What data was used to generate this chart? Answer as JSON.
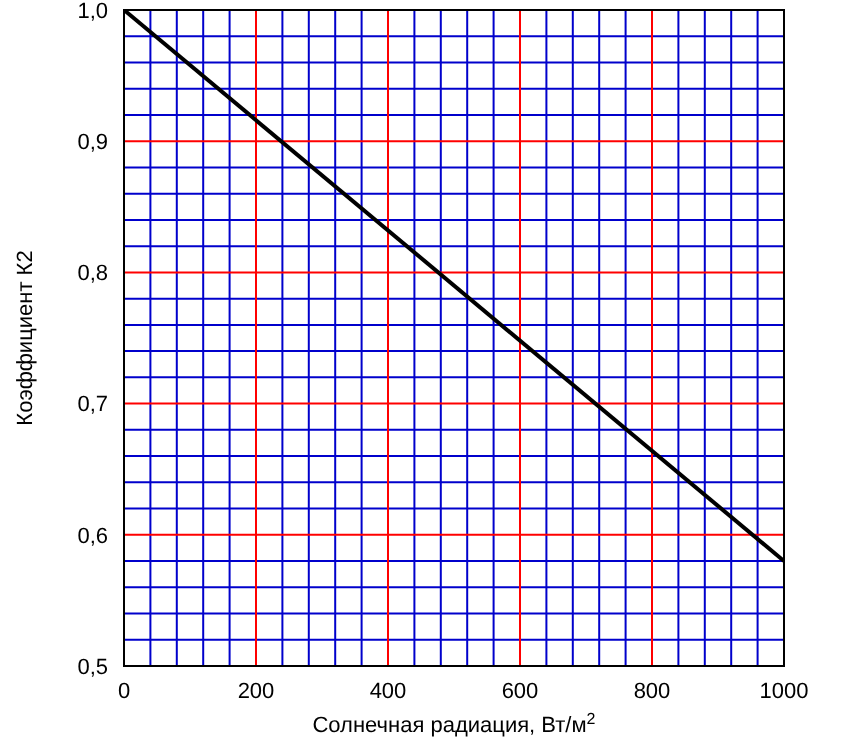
{
  "chart_data": {
    "type": "line",
    "xlabel": "Солнечная радиация, Вт/м$^{2}$",
    "ylabel": "Коэффициент К2",
    "x": [
      0,
      1000
    ],
    "series": [
      {
        "color": "#000000",
        "values": [
          1.0,
          0.58
        ]
      }
    ],
    "xlim": [
      0,
      1000
    ],
    "xticks": [
      0,
      {
        "value": 40,
        "label": null
      },
      {
        "value": 80,
        "label": null
      },
      {
        "value": 120,
        "label": null
      },
      {
        "value": 160,
        "label": null
      },
      200,
      {
        "value": 240,
        "label": null
      },
      {
        "value": 280,
        "label": null
      },
      {
        "value": 320,
        "label": null
      },
      {
        "value": 360,
        "label": null
      },
      400,
      {
        "value": 440,
        "label": null
      },
      {
        "value": 480,
        "label": null
      },
      {
        "value": 520,
        "label": null
      },
      {
        "value": 560,
        "label": null
      },
      600,
      {
        "value": 640,
        "label": null
      },
      {
        "value": 680,
        "label": null
      },
      {
        "value": 720,
        "label": null
      },
      {
        "value": 760,
        "label": null
      },
      800,
      {
        "value": 840,
        "label": null
      },
      {
        "value": 880,
        "label": null
      },
      {
        "value": 920,
        "label": null
      },
      {
        "value": 960,
        "label": null
      },
      1000
    ],
    "ylim": [
      0.5,
      1.0
    ],
    "yticks": [
      {
        "value": 0.5,
        "label": "0,5"
      },
      {
        "value": 0.52,
        "label": null
      },
      {
        "value": 0.54,
        "label": null
      },
      {
        "value": 0.56,
        "label": null
      },
      {
        "value": 0.58,
        "label": null
      },
      {
        "value": 0.6,
        "label": "0,6"
      },
      {
        "value": 0.62,
        "label": null
      },
      {
        "value": 0.64,
        "label": null
      },
      {
        "value": 0.66,
        "label": null
      },
      {
        "value": 0.68,
        "label": null
      },
      {
        "value": 0.7,
        "label": "0,7"
      },
      {
        "value": 0.72,
        "label": null
      },
      {
        "value": 0.74,
        "label": null
      },
      {
        "value": 0.76,
        "label": null
      },
      {
        "value": 0.78,
        "label": null
      },
      {
        "value": 0.8,
        "label": "0,8"
      },
      {
        "value": 0.82,
        "label": null
      },
      {
        "value": 0.84,
        "label": null
      },
      {
        "value": 0.86,
        "label": null
      },
      {
        "value": 0.88,
        "label": null
      },
      {
        "value": 0.9,
        "label": "0,9"
      },
      {
        "value": 0.92,
        "label": null
      },
      {
        "value": 0.94,
        "label": null
      },
      {
        "value": 0.96,
        "label": null
      },
      {
        "value": 0.98,
        "label": null
      },
      {
        "value": 1.0,
        "label": "1,0"
      }
    ],
    "grid": true,
    "marker": "none",
    "line_style": "solid",
    "legend": false
  }
}
